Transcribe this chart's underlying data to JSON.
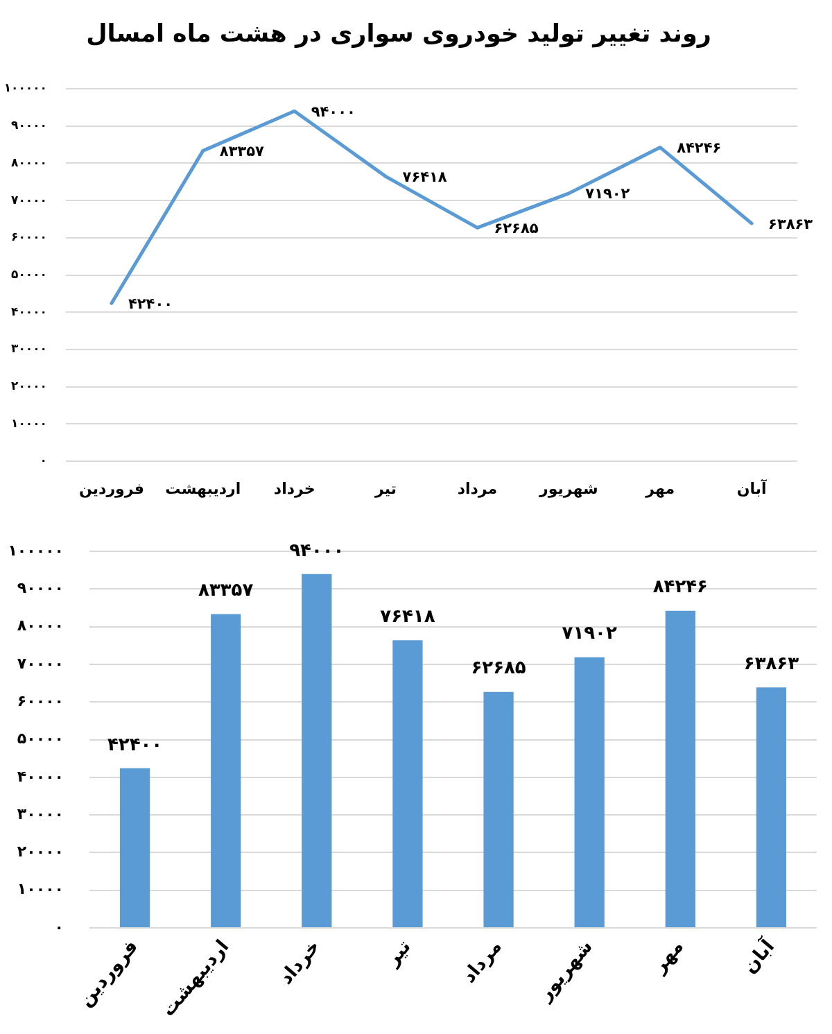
{
  "chart_data": [
    {
      "type": "line",
      "title": "روند تغییر تولید خودروی سواری در هشت ماه امسال",
      "categories": [
        "فروردین",
        "اردیبهشت",
        "خرداد",
        "تیر",
        "مرداد",
        "شهریور",
        "مهر",
        "آبان"
      ],
      "values": [
        42400,
        83357,
        94000,
        76418,
        62685,
        71902,
        84246,
        63863
      ],
      "value_labels": [
        "۴۲۴۰۰",
        "۸۳۳۵۷",
        "۹۴۰۰۰",
        "۷۶۴۱۸",
        "۶۲۶۸۵",
        "۷۱۹۰۲",
        "۸۴۲۴۶",
        "۶۳۸۶۳"
      ],
      "color": "#5b9bd5",
      "marker": "none",
      "line_style": "solid",
      "ylim": [
        0,
        100000
      ],
      "yticks": [
        {
          "value": 0,
          "label": "۰"
        },
        {
          "value": 10000,
          "label": "۱۰۰۰۰"
        },
        {
          "value": 20000,
          "label": "۲۰۰۰۰"
        },
        {
          "value": 30000,
          "label": "۳۰۰۰۰"
        },
        {
          "value": 40000,
          "label": "۴۰۰۰۰"
        },
        {
          "value": 50000,
          "label": "۵۰۰۰۰"
        },
        {
          "value": 60000,
          "label": "۶۰۰۰۰"
        },
        {
          "value": 70000,
          "label": "۷۰۰۰۰"
        },
        {
          "value": 80000,
          "label": "۸۰۰۰۰"
        },
        {
          "value": 90000,
          "label": "۹۰۰۰۰"
        },
        {
          "value": 100000,
          "label": "۱۰۰۰۰۰"
        }
      ],
      "grid": "y",
      "legend": false
    },
    {
      "type": "bar",
      "categories": [
        "فروردین",
        "اردیبهشت",
        "خرداد",
        "تیر",
        "مرداد",
        "شهریور",
        "مهر",
        "آبان"
      ],
      "values": [
        42400,
        83357,
        94000,
        76418,
        62685,
        71902,
        84246,
        63863
      ],
      "value_labels": [
        "۴۲۴۰۰",
        "۸۳۳۵۷",
        "۹۴۰۰۰",
        "۷۶۴۱۸",
        "۶۲۶۸۵",
        "۷۱۹۰۲",
        "۸۴۲۴۶",
        "۶۳۸۶۳"
      ],
      "color": "#5b9bd5",
      "ylim": [
        0,
        100000
      ],
      "yticks": [
        {
          "value": 0,
          "label": "۰"
        },
        {
          "value": 10000,
          "label": "۱۰۰۰۰"
        },
        {
          "value": 20000,
          "label": "۲۰۰۰۰"
        },
        {
          "value": 30000,
          "label": "۳۰۰۰۰"
        },
        {
          "value": 40000,
          "label": "۴۰۰۰۰"
        },
        {
          "value": 50000,
          "label": "۵۰۰۰۰"
        },
        {
          "value": 60000,
          "label": "۶۰۰۰۰"
        },
        {
          "value": 70000,
          "label": "۷۰۰۰۰"
        },
        {
          "value": 80000,
          "label": "۸۰۰۰۰"
        },
        {
          "value": 90000,
          "label": "۹۰۰۰۰"
        },
        {
          "value": 100000,
          "label": "۱۰۰۰۰۰"
        }
      ],
      "grid": "y",
      "legend": false
    }
  ]
}
